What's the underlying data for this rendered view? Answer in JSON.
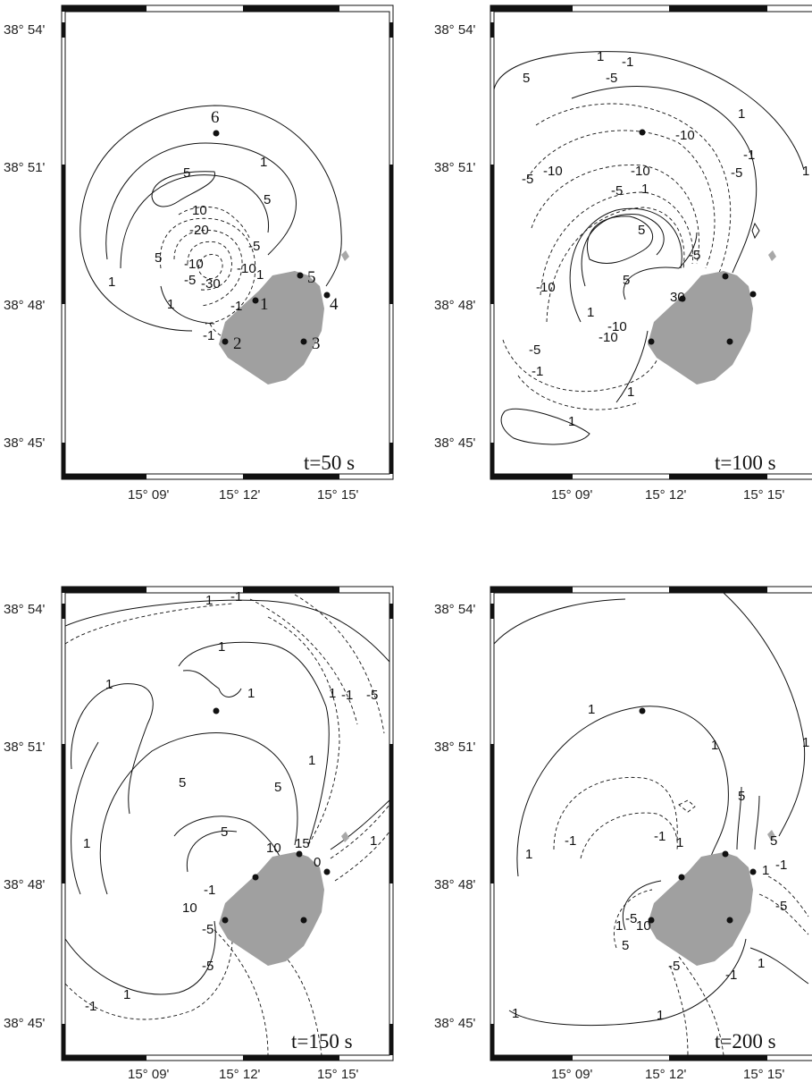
{
  "figure": {
    "y_axis_labels": [
      "38° 54'",
      "38° 51'",
      "38° 48'",
      "38° 45'"
    ],
    "x_axis_labels": [
      "15° 09'",
      "15° 12'",
      "15° 15'"
    ],
    "island_color": "#a0a0a0",
    "islet_color": "#a8a8a8",
    "panels": [
      {
        "time_label": "t=50 s",
        "site_labels": [
          "1",
          "2",
          "3",
          "4",
          "5",
          "6"
        ],
        "contour_labels": [
          "1",
          "5",
          "5",
          "5",
          "1",
          "1",
          "10",
          "-20",
          "-10",
          "-5",
          "-30",
          "-10",
          "-5",
          "1",
          "-1",
          "-1"
        ]
      },
      {
        "time_label": "t=100 s",
        "site_labels": [],
        "contour_labels": [
          "5",
          "1",
          "-1",
          "-5",
          "1",
          "-10",
          "-1",
          "-5",
          "1",
          "-5",
          "-10",
          "-10",
          "-5",
          "1",
          "5",
          "-5",
          "5",
          "30",
          "-10",
          "-10",
          "-5",
          "-1",
          "1",
          "1",
          "-10",
          "1"
        ]
      },
      {
        "time_label": "t=150 s",
        "site_labels": [],
        "contour_labels": [
          "1",
          "-1",
          "1",
          "1",
          "1",
          "-1",
          "-5",
          "1",
          "1",
          "5",
          "5",
          "1",
          "5",
          "10",
          "15",
          "0",
          "1",
          "10",
          "-1",
          "-5",
          "-5",
          "1",
          "-1"
        ]
      },
      {
        "time_label": "t=200 s",
        "site_labels": [],
        "contour_labels": [
          "1",
          "1",
          "1",
          "5",
          "1",
          "-1",
          "-1",
          "1",
          "5",
          "1",
          "-1",
          "-5",
          "1",
          "-5",
          "10",
          "5",
          "-5",
          "1",
          "-1",
          "1",
          "1"
        ]
      }
    ]
  }
}
